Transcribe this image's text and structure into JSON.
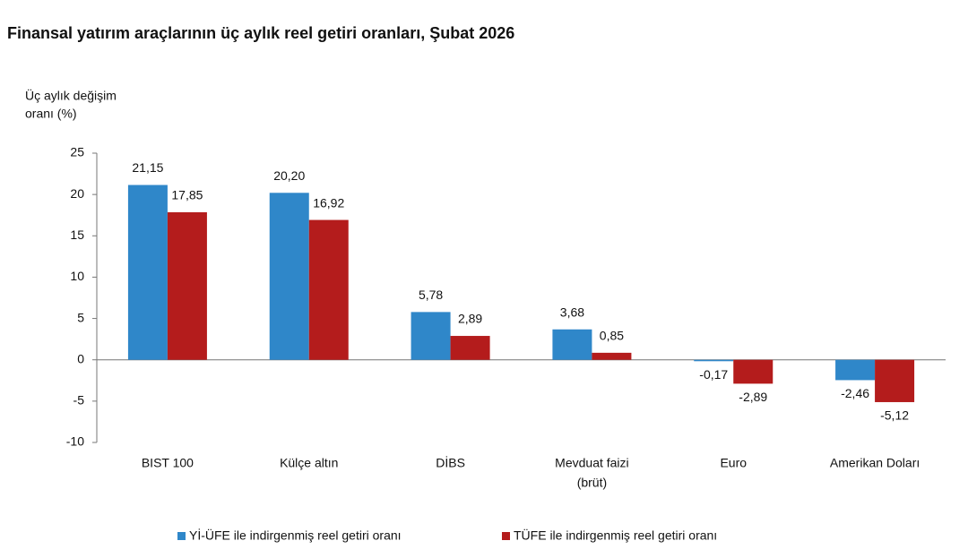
{
  "chart_data": {
    "type": "bar",
    "title": "Finansal yatırım araçlarının üç aylık reel getiri oranları, Şubat 2026",
    "y_label": [
      "Üç aylık değişim",
      "oranı (%)"
    ],
    "categories": [
      "BIST 100",
      "Külçe altın",
      "DİBS",
      [
        "Mevduat faizi",
        "(brüt)"
      ],
      "Euro",
      "Amerikan Doları"
    ],
    "series": [
      {
        "name": "Yİ-ÜFE ile indirgenmiş reel getiri oranı",
        "color": "#2f87c9",
        "values": [
          21.15,
          20.2,
          5.78,
          3.68,
          -0.17,
          -2.46
        ],
        "value_labels": [
          "21,15",
          "20,20",
          "5,78",
          "3,68",
          "-0,17",
          "-2,46"
        ]
      },
      {
        "name": "TÜFE ile indirgenmiş reel getiri oranı",
        "color": "#b41c1c",
        "values": [
          17.85,
          16.92,
          2.89,
          0.85,
          -2.89,
          -5.12
        ],
        "value_labels": [
          "17,85",
          "16,92",
          "2,89",
          "0,85",
          "-2,89",
          "-5,12"
        ]
      }
    ],
    "ylim": [
      -10,
      25
    ],
    "yticks": [
      -10,
      -5,
      0,
      5,
      10,
      15,
      20,
      25
    ],
    "legend": "bottom"
  }
}
